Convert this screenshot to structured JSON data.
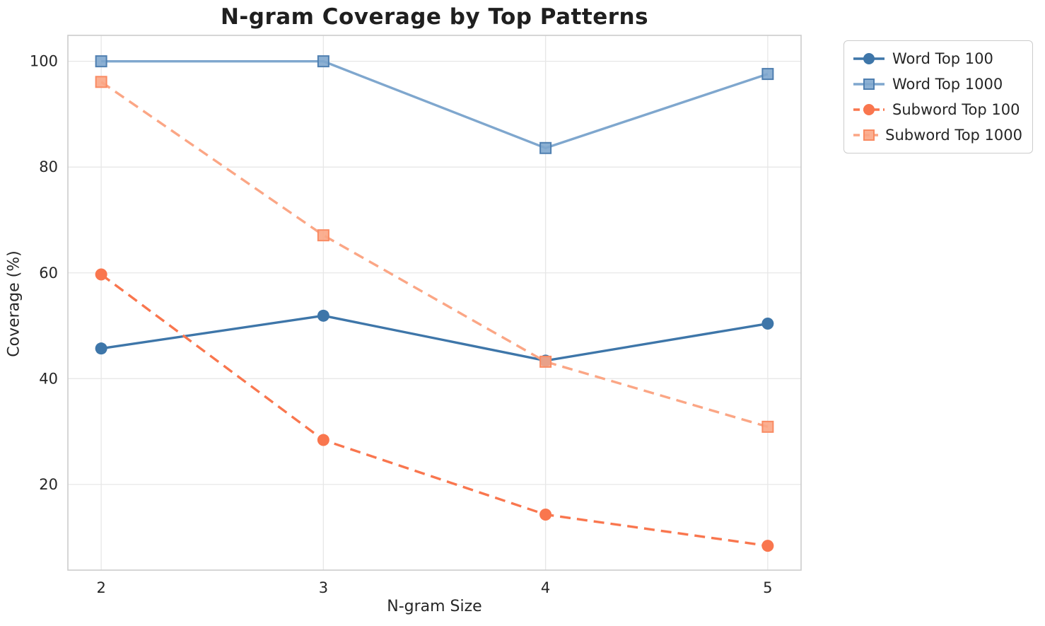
{
  "title": "N-gram Coverage by Top Patterns",
  "chart_data": {
    "type": "line",
    "title": "N-gram Coverage by Top Patterns",
    "xlabel": "N-gram Size",
    "ylabel": "Coverage (%)",
    "x": [
      2,
      3,
      4,
      5
    ],
    "xtick_labels": [
      "2",
      "3",
      "4",
      "5"
    ],
    "yticks": [
      20,
      40,
      60,
      80,
      100
    ],
    "ytick_labels": [
      "20",
      "40",
      "60",
      "80",
      "100"
    ],
    "xlim": [
      1.85,
      5.15
    ],
    "ylim": [
      3.8,
      104.9
    ],
    "grid": true,
    "legend_position": "outside-top-right",
    "series": [
      {
        "name": "Word Top 100",
        "values": [
          45.7,
          51.9,
          43.4,
          50.4
        ],
        "color": "#3E76A9",
        "edge": "#3E76A9",
        "line_style": "solid",
        "marker": "circle"
      },
      {
        "name": "Word Top 1000",
        "values": [
          100.0,
          100.0,
          83.6,
          97.6
        ],
        "color": "#7FA7CE",
        "edge": "#4F7FB0",
        "line_style": "solid",
        "marker": "square"
      },
      {
        "name": "Subword Top 100",
        "values": [
          59.7,
          28.4,
          14.3,
          8.4
        ],
        "color": "#F9764E",
        "edge": "#F9764E",
        "line_style": "dashed",
        "marker": "circle"
      },
      {
        "name": "Subword Top 1000",
        "values": [
          96.1,
          67.1,
          43.2,
          30.9
        ],
        "color": "#FBA685",
        "edge": "#F98B63",
        "line_style": "dashed",
        "marker": "square"
      }
    ]
  },
  "style": {
    "grid_color": "#e7e7e7",
    "spine_color": "#cccccc",
    "tick_label_color": "#262626",
    "title_color": "#1f1f1f",
    "background": "#ffffff"
  }
}
